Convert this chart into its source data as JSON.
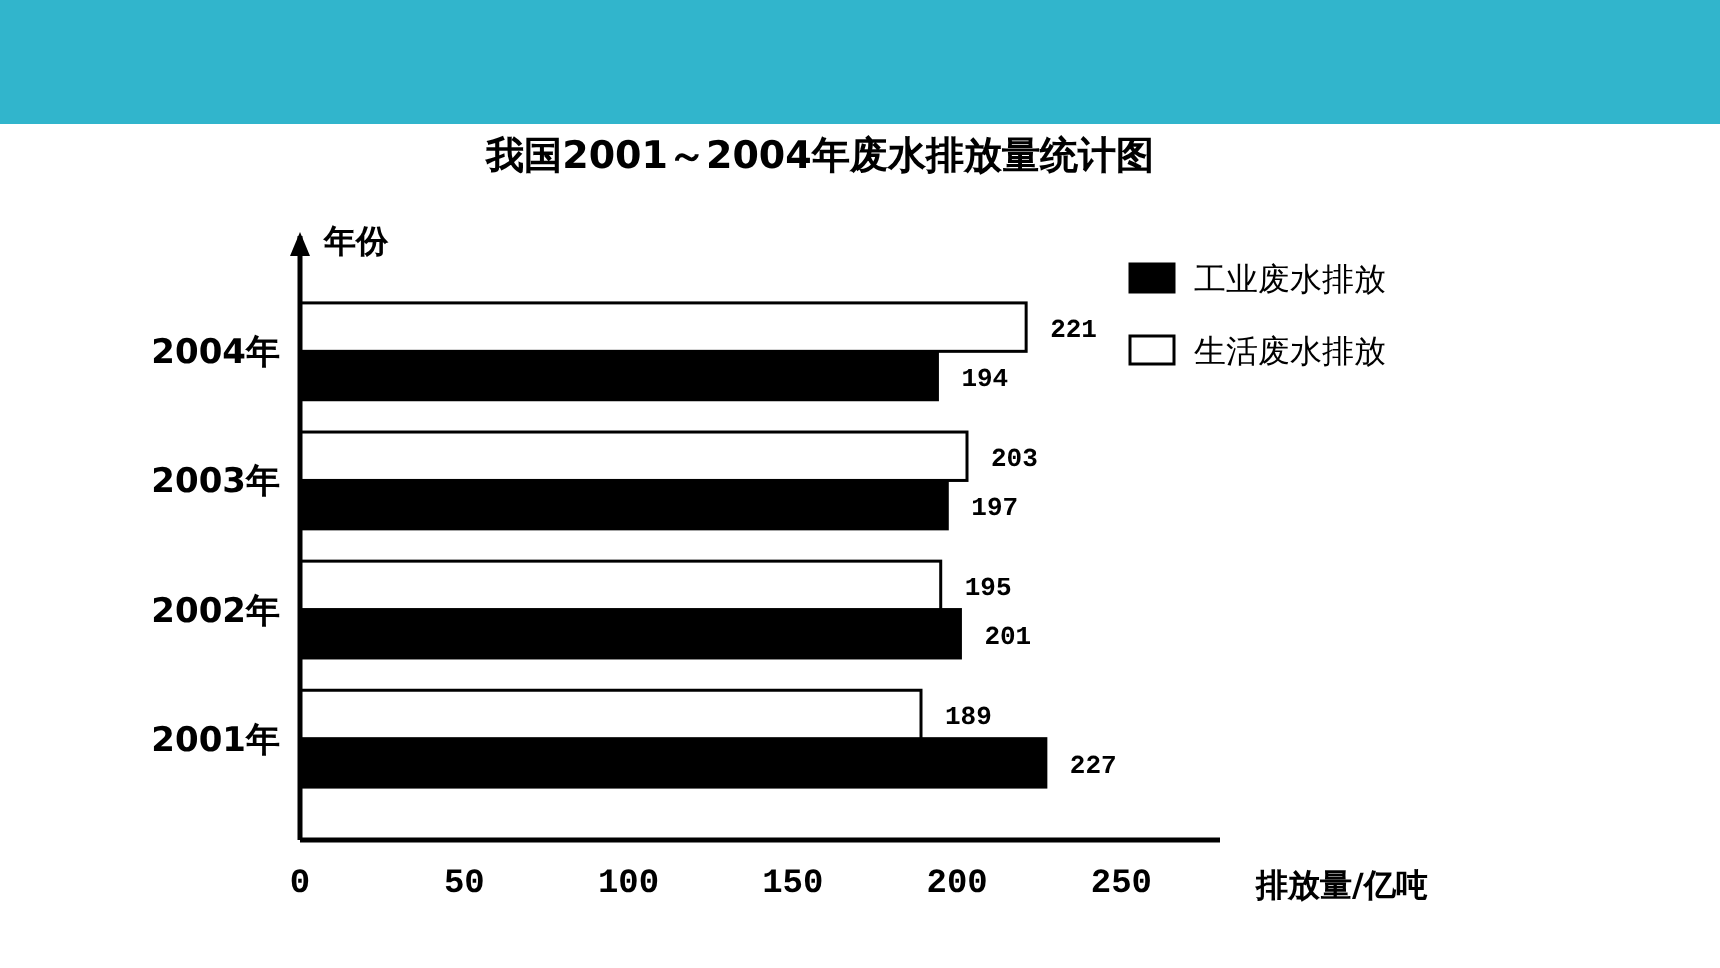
{
  "chart_data": {
    "type": "bar",
    "orientation": "horizontal",
    "title": "我国2001～2004年废水排放量统计图",
    "xlabel": "排放量/亿吨",
    "ylabel": "年份",
    "categories": [
      "2004年",
      "2003年",
      "2002年",
      "2001年"
    ],
    "series": [
      {
        "name": "工业废水排放",
        "color": "#000000",
        "values": [
          194,
          197,
          201,
          227
        ]
      },
      {
        "name": "生活废水排放",
        "color": "#ffffff",
        "values": [
          221,
          203,
          195,
          189
        ]
      }
    ],
    "xlim": [
      0,
      280
    ],
    "xticks": [
      0,
      50,
      100,
      150,
      200,
      250
    ],
    "data_labels": true,
    "legend": "top right"
  }
}
